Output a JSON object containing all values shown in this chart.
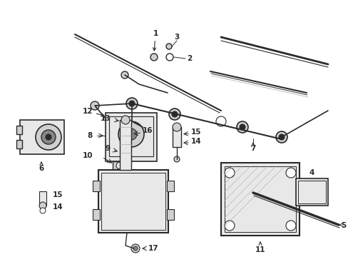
{
  "bg_color": "#ffffff",
  "line_color": "#2a2a2a",
  "fig_width": 4.89,
  "fig_height": 3.6,
  "dpi": 100,
  "gray_fill": "#d0d0d0",
  "light_fill": "#e8e8e8",
  "dark_fill": "#888888"
}
